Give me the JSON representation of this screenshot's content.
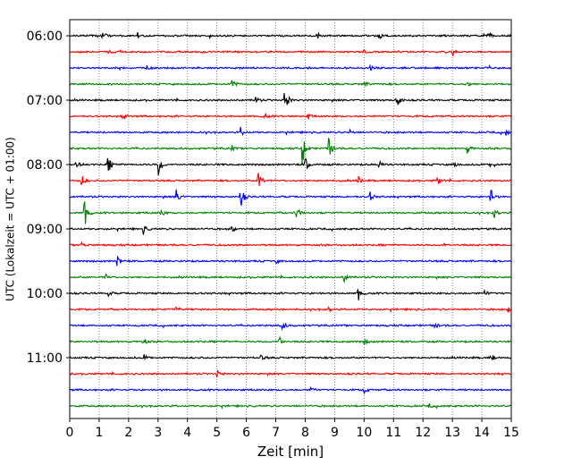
{
  "chart_data": {
    "type": "line",
    "title": "",
    "xlabel": "Zeit  [min]",
    "ylabel": "UTC (Lokalzeit = UTC + 01:00)",
    "xlim": [
      0,
      15
    ],
    "x_ticks": [
      "0",
      "1",
      "2",
      "3",
      "4",
      "5",
      "6",
      "7",
      "8",
      "9",
      "10",
      "11",
      "12",
      "13",
      "14",
      "15"
    ],
    "y_ticks": [
      "06:00",
      "07:00",
      "08:00",
      "09:00",
      "10:00",
      "11:00"
    ],
    "trace_interval_min": 15,
    "grid": "vertical dotted at each minute",
    "legend": "none",
    "colors": [
      "#000000",
      "#ff0000",
      "#0000ff",
      "#008000"
    ],
    "traces": [
      {
        "time": "06:00",
        "color": "#000000",
        "events": [
          [
            1.1,
            0.35
          ],
          [
            2.3,
            0.2
          ],
          [
            8.4,
            0.2
          ],
          [
            10.5,
            0.3
          ],
          [
            14.2,
            0.35
          ]
        ]
      },
      {
        "time": "06:15",
        "color": "#ff0000",
        "events": [
          [
            1.3,
            0.15
          ],
          [
            10.0,
            0.15
          ],
          [
            13.0,
            0.2
          ]
        ]
      },
      {
        "time": "06:30",
        "color": "#0000ff",
        "events": [
          [
            2.6,
            0.15
          ],
          [
            10.2,
            0.2
          ]
        ]
      },
      {
        "time": "06:45",
        "color": "#008000",
        "events": [
          [
            5.5,
            0.4
          ],
          [
            10.0,
            0.15
          ],
          [
            13.5,
            0.2
          ]
        ]
      },
      {
        "time": "07:00",
        "color": "#000000",
        "events": [
          [
            6.3,
            0.3
          ],
          [
            7.3,
            1.0
          ],
          [
            11.1,
            0.7
          ]
        ]
      },
      {
        "time": "07:15",
        "color": "#ff0000",
        "events": [
          [
            1.8,
            0.3
          ],
          [
            6.6,
            0.25
          ],
          [
            8.1,
            0.2
          ]
        ]
      },
      {
        "time": "07:30",
        "color": "#0000ff",
        "events": [
          [
            5.8,
            0.3
          ],
          [
            9.5,
            0.2
          ],
          [
            14.8,
            0.25
          ]
        ]
      },
      {
        "time": "07:45",
        "color": "#008000",
        "events": [
          [
            5.5,
            0.2
          ],
          [
            7.9,
            1.2
          ],
          [
            8.8,
            0.8
          ],
          [
            13.5,
            0.3
          ]
        ]
      },
      {
        "time": "08:00",
        "color": "#000000",
        "events": [
          [
            0.2,
            0.4
          ],
          [
            1.3,
            0.6
          ],
          [
            3.0,
            1.0
          ],
          [
            8.0,
            0.5
          ],
          [
            10.5,
            0.3
          ],
          [
            13.0,
            0.3
          ],
          [
            14.3,
            0.4
          ]
        ]
      },
      {
        "time": "08:15",
        "color": "#ff0000",
        "events": [
          [
            0.4,
            0.4
          ],
          [
            6.4,
            0.9
          ],
          [
            9.8,
            0.3
          ],
          [
            12.5,
            0.3
          ]
        ]
      },
      {
        "time": "08:30",
        "color": "#0000ff",
        "events": [
          [
            3.6,
            0.7
          ],
          [
            5.8,
            0.8
          ],
          [
            10.2,
            0.3
          ],
          [
            14.3,
            0.55
          ]
        ]
      },
      {
        "time": "08:45",
        "color": "#008000",
        "events": [
          [
            0.5,
            1.1
          ],
          [
            3.1,
            0.25
          ],
          [
            7.7,
            0.5
          ],
          [
            14.4,
            0.4
          ]
        ]
      },
      {
        "time": "09:00",
        "color": "#000000",
        "events": [
          [
            2.5,
            0.35
          ],
          [
            5.5,
            0.2
          ]
        ]
      },
      {
        "time": "09:15",
        "color": "#ff0000",
        "events": [
          [
            0.4,
            0.2
          ],
          [
            12.7,
            0.15
          ]
        ]
      },
      {
        "time": "09:30",
        "color": "#0000ff",
        "events": [
          [
            1.6,
            0.5
          ],
          [
            7.0,
            0.15
          ]
        ]
      },
      {
        "time": "09:45",
        "color": "#008000",
        "events": [
          [
            1.2,
            0.25
          ],
          [
            9.3,
            0.4
          ]
        ]
      },
      {
        "time": "10:00",
        "color": "#000000",
        "events": [
          [
            1.3,
            0.2
          ],
          [
            9.8,
            0.5
          ],
          [
            14.1,
            0.2
          ]
        ]
      },
      {
        "time": "10:15",
        "color": "#ff0000",
        "events": [
          [
            3.6,
            0.2
          ],
          [
            8.8,
            0.15
          ],
          [
            14.9,
            0.2
          ]
        ]
      },
      {
        "time": "10:30",
        "color": "#0000ff",
        "events": [
          [
            7.2,
            0.5
          ],
          [
            12.4,
            0.2
          ]
        ]
      },
      {
        "time": "10:45",
        "color": "#008000",
        "events": [
          [
            2.5,
            0.25
          ],
          [
            7.1,
            0.55
          ],
          [
            10.0,
            0.2
          ]
        ]
      },
      {
        "time": "11:00",
        "color": "#000000",
        "events": [
          [
            2.5,
            0.25
          ],
          [
            6.5,
            0.2
          ],
          [
            14.3,
            0.3
          ]
        ]
      },
      {
        "time": "11:15",
        "color": "#ff0000",
        "events": [
          [
            5.0,
            0.25
          ]
        ]
      },
      {
        "time": "11:30",
        "color": "#0000ff",
        "events": [
          [
            8.2,
            0.25
          ],
          [
            10.0,
            0.2
          ]
        ]
      },
      {
        "time": "11:45",
        "color": "#008000",
        "events": [
          [
            12.2,
            0.15
          ]
        ]
      }
    ]
  }
}
